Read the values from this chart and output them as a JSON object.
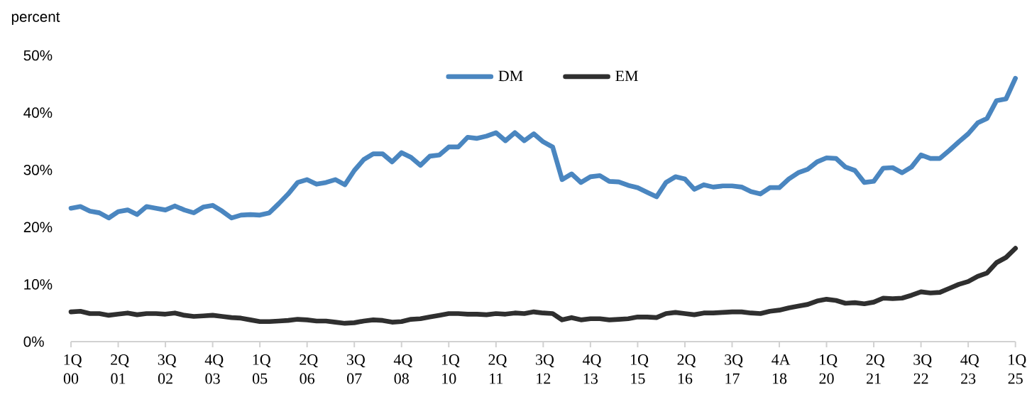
{
  "chart_data": {
    "type": "line",
    "ylabel": "percent",
    "categories": [
      "1Q 00",
      null,
      null,
      null,
      null,
      "2Q 01",
      null,
      null,
      null,
      null,
      "3Q 02",
      null,
      null,
      null,
      null,
      "4Q 03",
      null,
      null,
      null,
      null,
      "1Q 05",
      null,
      null,
      null,
      null,
      "2Q 06",
      null,
      null,
      null,
      null,
      "3Q 07",
      null,
      null,
      null,
      null,
      "4Q 08",
      null,
      null,
      null,
      null,
      "1Q 10",
      null,
      null,
      null,
      null,
      "2Q 11",
      null,
      null,
      null,
      null,
      "3Q 12",
      null,
      null,
      null,
      null,
      "4Q 13",
      null,
      null,
      null,
      null,
      "1Q 15",
      null,
      null,
      null,
      null,
      "2Q 16",
      null,
      null,
      null,
      null,
      "3Q 17",
      null,
      null,
      null,
      null,
      "4A 18",
      null,
      null,
      null,
      null,
      "1Q 20",
      null,
      null,
      null,
      null,
      "2Q 21",
      null,
      null,
      null,
      null,
      "3Q 22",
      null,
      null,
      null,
      null,
      "4Q 23",
      null,
      null,
      null,
      null,
      "1Q 25"
    ],
    "series": [
      {
        "name": "DM",
        "color": "#4a86c0",
        "values": [
          23.3,
          23.6,
          22.8,
          22.5,
          21.6,
          22.7,
          23.0,
          22.2,
          23.6,
          23.3,
          23.0,
          23.7,
          23.0,
          22.5,
          23.5,
          23.8,
          22.8,
          21.6,
          22.1,
          22.2,
          22.1,
          22.5,
          24.1,
          25.8,
          27.8,
          28.3,
          27.5,
          27.8,
          28.3,
          27.4,
          29.9,
          31.8,
          32.8,
          32.8,
          31.4,
          33.0,
          32.2,
          30.8,
          32.4,
          32.6,
          34.0,
          34.0,
          35.7,
          35.5,
          35.9,
          36.5,
          35.1,
          36.5,
          35.1,
          36.3,
          34.9,
          34.0,
          28.3,
          29.3,
          27.8,
          28.8,
          29.0,
          28.0,
          27.9,
          27.3,
          26.9,
          26.1,
          25.3,
          27.8,
          28.8,
          28.4,
          26.6,
          27.4,
          27.0,
          27.2,
          27.2,
          27.0,
          26.2,
          25.8,
          26.9,
          26.9,
          28.4,
          29.5,
          30.1,
          31.4,
          32.1,
          32.0,
          30.5,
          29.9,
          27.8,
          28.0,
          30.3,
          30.4,
          29.5,
          30.5,
          32.6,
          32.0,
          32.0,
          33.4,
          34.9,
          36.3,
          38.2,
          39.0,
          42.1,
          42.4,
          46.0
        ]
      },
      {
        "name": "EM",
        "color": "#2f2f2f",
        "values": [
          5.2,
          5.3,
          4.9,
          4.9,
          4.6,
          4.8,
          5.0,
          4.7,
          4.9,
          4.9,
          4.8,
          5.0,
          4.6,
          4.4,
          4.5,
          4.6,
          4.4,
          4.2,
          4.1,
          3.8,
          3.5,
          3.5,
          3.6,
          3.7,
          3.9,
          3.8,
          3.6,
          3.6,
          3.4,
          3.2,
          3.3,
          3.6,
          3.8,
          3.7,
          3.4,
          3.5,
          3.9,
          4.0,
          4.3,
          4.6,
          4.9,
          4.9,
          4.8,
          4.8,
          4.7,
          4.9,
          4.8,
          5.0,
          4.9,
          5.2,
          5.0,
          4.9,
          3.8,
          4.2,
          3.8,
          4.0,
          4.0,
          3.8,
          3.9,
          4.0,
          4.3,
          4.3,
          4.2,
          4.9,
          5.1,
          4.9,
          4.7,
          5.0,
          5.0,
          5.1,
          5.2,
          5.2,
          5.0,
          4.9,
          5.3,
          5.5,
          5.9,
          6.2,
          6.5,
          7.1,
          7.4,
          7.2,
          6.7,
          6.8,
          6.6,
          6.9,
          7.6,
          7.5,
          7.6,
          8.1,
          8.7,
          8.5,
          8.6,
          9.3,
          10.0,
          10.5,
          11.4,
          12.0,
          13.8,
          14.7,
          16.3
        ]
      }
    ],
    "ylim": [
      0,
      50
    ],
    "yticks": [
      {
        "value": 0,
        "label": "0%"
      },
      {
        "value": 10,
        "label": "10%"
      },
      {
        "value": 20,
        "label": "20%"
      },
      {
        "value": 30,
        "label": "30%"
      },
      {
        "value": 40,
        "label": "40%"
      },
      {
        "value": 50,
        "label": "50%"
      }
    ],
    "legend": "top",
    "grid": false,
    "marker": "none",
    "line_style": "solid"
  }
}
